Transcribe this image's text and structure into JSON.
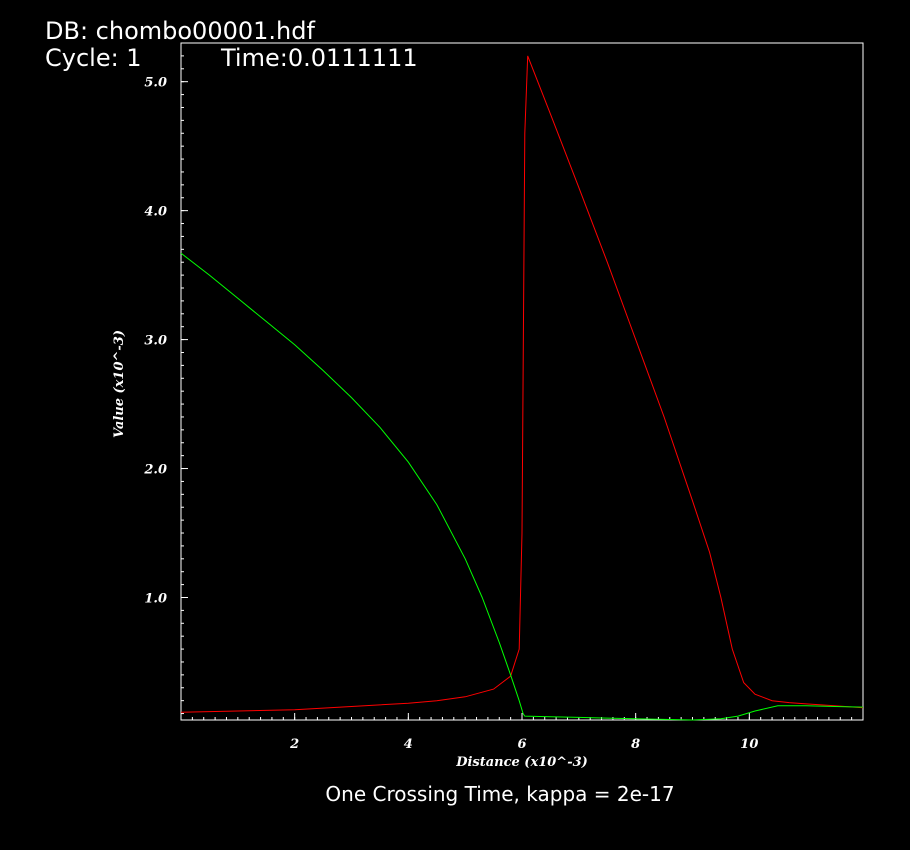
{
  "header": {
    "db": "DB: chombo00001.hdf",
    "cycle": "Cycle: 1",
    "time": "Time:0.0111111"
  },
  "caption": "One Crossing Time, kappa = 2e-17",
  "chart_data": {
    "type": "line",
    "xlabel": "Distance (x10^-3)",
    "ylabel": "Value (x10^-3)",
    "xlim": [
      0,
      12
    ],
    "ylim": [
      0.05,
      5.3
    ],
    "xticks": [
      2,
      4,
      6,
      8,
      10
    ],
    "xtick_labels": [
      "2",
      "4",
      "6",
      "8",
      "10"
    ],
    "yticks": [
      1.0,
      2.0,
      3.0,
      4.0,
      5.0
    ],
    "ytick_labels": [
      "1.0",
      "2.0",
      "3.0",
      "4.0",
      "5.0"
    ],
    "grid": false,
    "legend": "none",
    "series": [
      {
        "color": "#ff0000",
        "x": [
          0,
          1,
          2,
          3,
          4,
          4.5,
          5,
          5.5,
          5.8,
          5.95,
          6.0,
          6.05,
          6.1,
          6.5,
          7.0,
          7.5,
          8.0,
          8.5,
          9.0,
          9.3,
          9.5,
          9.7,
          9.9,
          10.1,
          10.4,
          10.7,
          11.0,
          11.5,
          12.0
        ],
        "values": [
          0.11,
          0.12,
          0.13,
          0.155,
          0.18,
          0.2,
          0.23,
          0.29,
          0.39,
          0.6,
          1.5,
          4.6,
          5.2,
          4.75,
          4.18,
          3.6,
          3.0,
          2.4,
          1.75,
          1.35,
          1.0,
          0.6,
          0.34,
          0.25,
          0.2,
          0.185,
          0.175,
          0.16,
          0.145
        ]
      },
      {
        "color": "#00ff00",
        "x": [
          0,
          0.5,
          1,
          1.5,
          2,
          2.5,
          3,
          3.5,
          4,
          4.5,
          5,
          5.3,
          5.6,
          5.8,
          5.95,
          6.02,
          6.05,
          6.5,
          7.0,
          7.5,
          8.0,
          8.5,
          9.0,
          9.5,
          9.8,
          10.1,
          10.5,
          11.0,
          11.5,
          12.0
        ],
        "values": [
          3.67,
          3.5,
          3.32,
          3.14,
          2.96,
          2.76,
          2.55,
          2.32,
          2.05,
          1.72,
          1.3,
          1.0,
          0.65,
          0.4,
          0.2,
          0.1,
          0.08,
          0.075,
          0.07,
          0.065,
          0.06,
          0.055,
          0.05,
          0.06,
          0.08,
          0.12,
          0.16,
          0.16,
          0.155,
          0.15
        ]
      }
    ]
  }
}
